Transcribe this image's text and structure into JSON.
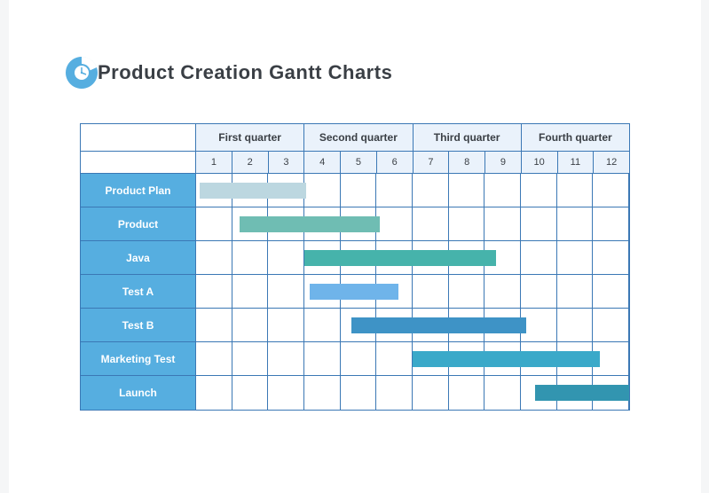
{
  "title": "Product Creation Gantt  Charts",
  "label_bg": "#56aee0",
  "border_color": "#3b78b5",
  "header_bg": "#eaf2fb",
  "quarters": [
    "First quarter",
    "Second quarter",
    "Third quarter",
    "Fourth quarter"
  ],
  "months": [
    "1",
    "2",
    "3",
    "4",
    "5",
    "6",
    "7",
    "8",
    "9",
    "10",
    "11",
    "12"
  ],
  "tasks": [
    {
      "label": "Product Plan",
      "start": 0.1,
      "end": 3.05,
      "color": "#bcd7e0"
    },
    {
      "label": "Product",
      "start": 1.2,
      "end": 5.1,
      "color": "#6fbdb3"
    },
    {
      "label": "Java",
      "start": 3.0,
      "end": 8.3,
      "color": "#46b3ab"
    },
    {
      "label": "Test A",
      "start": 3.15,
      "end": 5.6,
      "color": "#6fb4ea"
    },
    {
      "label": "Test B",
      "start": 4.3,
      "end": 9.15,
      "color": "#3e93c6"
    },
    {
      "label": "Marketing Test",
      "start": 6.0,
      "end": 11.2,
      "color": "#3aa9c9"
    },
    {
      "label": "Launch",
      "start": 9.4,
      "end": 12.0,
      "color": "#3295b0"
    }
  ]
}
